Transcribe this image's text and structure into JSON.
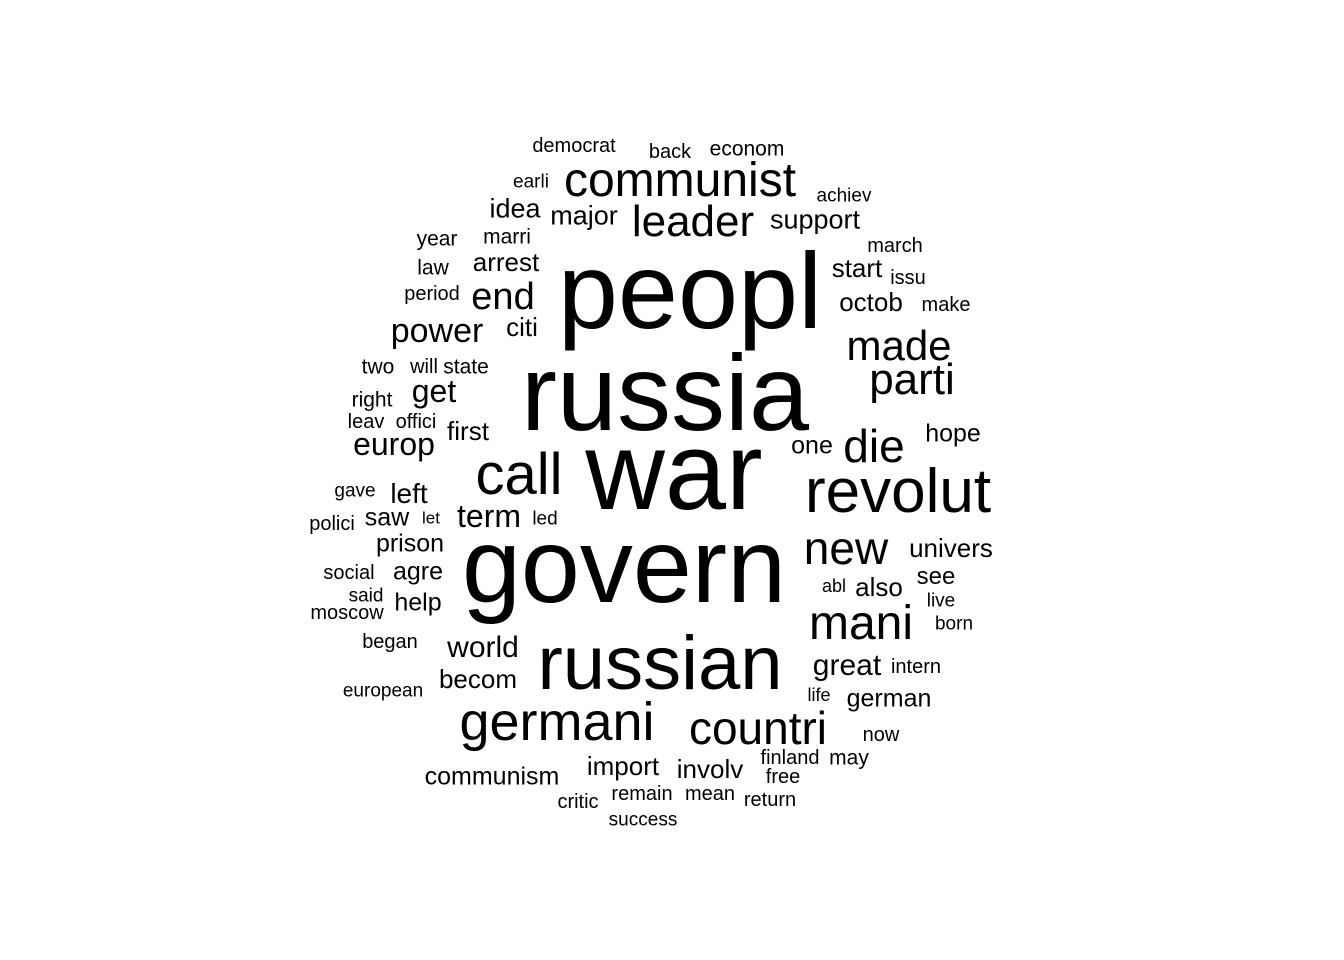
{
  "wordcloud": {
    "words": [
      "peopl",
      "russia",
      "war",
      "govern",
      "russian",
      "revolut",
      "call",
      "germani",
      "countri",
      "mani",
      "new",
      "parti",
      "die",
      "made",
      "communist",
      "leader",
      "end",
      "power",
      "europ",
      "term",
      "great",
      "world",
      "get",
      "support",
      "major",
      "idea",
      "arrest",
      "start",
      "octob",
      "citi",
      "first",
      "left",
      "saw",
      "prison",
      "agre",
      "help",
      "becom",
      "german",
      "univers",
      "see",
      "also",
      "hope",
      "one",
      "import",
      "involv",
      "communism",
      "democrat",
      "back",
      "econom",
      "earli",
      "achiev",
      "year",
      "marri",
      "march",
      "law",
      "issu",
      "period",
      "make",
      "two",
      "will",
      "state",
      "right",
      "leav",
      "offici",
      "gave",
      "polici",
      "let",
      "led",
      "social",
      "said",
      "moscow",
      "abl",
      "live",
      "born",
      "began",
      "intern",
      "european",
      "life",
      "now",
      "finland",
      "may",
      "free",
      "critic",
      "remain",
      "mean",
      "return",
      "success"
    ]
  }
}
